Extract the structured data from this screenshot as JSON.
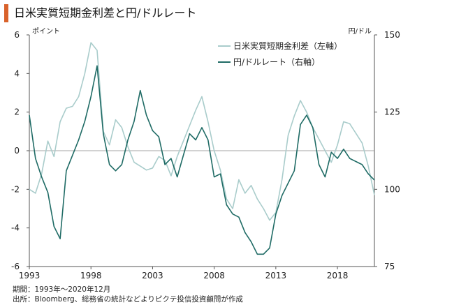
{
  "title": "日米実質短期金利差と円/ドルレート",
  "notes": {
    "period": "期間：1993年～2020年12月",
    "source": "出所：Bloomberg、総務省の統計などよりピクテ投信投資顧問が作成"
  },
  "colors": {
    "spread": "#a9cccb",
    "usdjpy": "#1f6b65",
    "accent": "#d9622b",
    "zero_line": "#888888"
  },
  "chart_data": {
    "type": "line",
    "title": "日米実質短期金利差と円/ドルレート",
    "y_left": {
      "unit": "ポイント",
      "ylim": [
        -6,
        6
      ],
      "ticks": [
        "6",
        "4",
        "2",
        "0",
        "-2",
        "-4",
        "-6"
      ]
    },
    "y_right": {
      "unit": "円/ドル",
      "ylim": [
        75,
        150
      ],
      "ticks": [
        "150",
        "125",
        "100",
        "75"
      ]
    },
    "x_axis": {
      "range": [
        1993,
        2021
      ],
      "ticks": [
        "1993",
        "1998",
        "2003",
        "2008",
        "2013",
        "2018"
      ]
    },
    "grid": false,
    "legend_position": "top-right",
    "series": [
      {
        "name": "日米実質短期金利差（左軸）",
        "axis": "left",
        "x": [
          1993.0,
          1993.5,
          1994.0,
          1994.5,
          1995.0,
          1995.5,
          1996.0,
          1996.5,
          1997.0,
          1997.5,
          1998.0,
          1998.5,
          1999.0,
          1999.5,
          2000.0,
          2000.5,
          2001.0,
          2001.5,
          2002.0,
          2002.5,
          2003.0,
          2003.5,
          2004.0,
          2004.5,
          2005.0,
          2005.5,
          2006.0,
          2006.5,
          2007.0,
          2007.5,
          2008.0,
          2008.5,
          2009.0,
          2009.5,
          2010.0,
          2010.5,
          2011.0,
          2011.5,
          2012.0,
          2012.5,
          2013.0,
          2013.5,
          2014.0,
          2014.5,
          2015.0,
          2015.5,
          2016.0,
          2016.5,
          2017.0,
          2017.5,
          2018.0,
          2018.5,
          2019.0,
          2019.5,
          2020.0,
          2020.5,
          2021.0
        ],
        "values": [
          -2.0,
          -2.2,
          -1.2,
          0.5,
          -0.3,
          1.5,
          2.2,
          2.3,
          2.8,
          4.0,
          5.6,
          5.2,
          1.0,
          0.3,
          1.6,
          1.2,
          0.2,
          -0.6,
          -0.8,
          -1.0,
          -0.9,
          -0.3,
          -0.5,
          -1.3,
          -0.3,
          0.5,
          1.3,
          2.1,
          2.8,
          1.5,
          0.0,
          -1.0,
          -2.5,
          -3.0,
          -1.5,
          -2.2,
          -1.8,
          -2.5,
          -3.0,
          -3.6,
          -3.2,
          -1.5,
          0.8,
          1.8,
          2.6,
          2.0,
          1.2,
          0.6,
          0.0,
          -0.6,
          0.3,
          1.5,
          1.4,
          0.9,
          0.4,
          -0.8,
          -2.3
        ]
      },
      {
        "name": "円/ドルレート（右軸）",
        "axis": "right",
        "x": [
          1993.0,
          1993.5,
          1994.0,
          1994.5,
          1995.0,
          1995.5,
          1996.0,
          1996.5,
          1997.0,
          1997.5,
          1998.0,
          1998.5,
          1999.0,
          1999.5,
          2000.0,
          2000.5,
          2001.0,
          2001.5,
          2002.0,
          2002.5,
          2003.0,
          2003.5,
          2004.0,
          2004.5,
          2005.0,
          2005.5,
          2006.0,
          2006.5,
          2007.0,
          2007.5,
          2008.0,
          2008.5,
          2009.0,
          2009.5,
          2010.0,
          2010.5,
          2011.0,
          2011.5,
          2012.0,
          2012.5,
          2013.0,
          2013.5,
          2014.0,
          2014.5,
          2015.0,
          2015.5,
          2016.0,
          2016.5,
          2017.0,
          2017.5,
          2018.0,
          2018.5,
          2019.0,
          2019.5,
          2020.0,
          2020.5,
          2021.0
        ],
        "values": [
          124,
          110,
          104,
          99,
          88,
          84,
          106,
          111,
          116,
          122,
          130,
          140,
          118,
          108,
          106,
          108,
          116,
          122,
          132,
          124,
          119,
          117,
          108,
          110,
          104,
          111,
          118,
          116,
          120,
          116,
          104,
          105,
          95,
          92,
          91,
          86,
          83,
          79,
          79,
          81,
          92,
          98,
          102,
          106,
          121,
          124,
          120,
          108,
          104,
          112,
          110,
          113,
          110,
          109,
          108,
          105,
          103
        ]
      }
    ]
  }
}
